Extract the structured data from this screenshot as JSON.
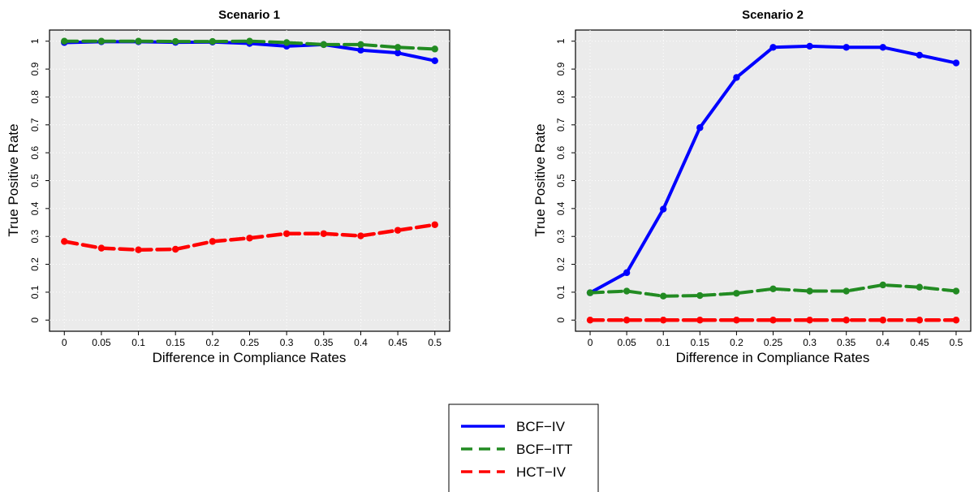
{
  "chart_data": [
    {
      "type": "line",
      "title": "Scenario 1",
      "xlabel": "Difference in Compliance Rates",
      "ylabel": "True Positive Rate",
      "x": [
        0,
        0.05,
        0.1,
        0.15,
        0.2,
        0.25,
        0.3,
        0.35,
        0.4,
        0.45,
        0.5
      ],
      "x_tick_labels": [
        "0",
        "0.05",
        "0.1",
        "0.15",
        "0.2",
        "0.25",
        "0.3",
        "0.35",
        "0.4",
        "0.45",
        "0.5"
      ],
      "y_ticks": [
        0,
        0.1,
        0.2,
        0.3,
        0.4,
        0.5,
        0.6,
        0.7,
        0.8,
        0.9,
        1
      ],
      "y_tick_labels": [
        "0",
        "0.1",
        "0.2",
        "0.3",
        "0.4",
        "0.5",
        "0.6",
        "0.7",
        "0.8",
        "0.9",
        "1"
      ],
      "xlim": [
        -0.02,
        0.52
      ],
      "ylim": [
        -0.04,
        1.04
      ],
      "grid": true,
      "series": [
        {
          "name": "BCF−IV",
          "values": [
            0.995,
            0.998,
            0.998,
            0.996,
            0.997,
            0.992,
            0.982,
            0.988,
            0.968,
            0.958,
            0.93
          ]
        },
        {
          "name": "BCF−ITT",
          "values": [
            1.0,
            1.0,
            1.0,
            0.999,
            0.999,
            1.0,
            0.995,
            0.988,
            0.988,
            0.978,
            0.972
          ]
        },
        {
          "name": "HCT−IV",
          "values": [
            0.282,
            0.258,
            0.252,
            0.254,
            0.282,
            0.294,
            0.31,
            0.31,
            0.302,
            0.322,
            0.342
          ]
        }
      ]
    },
    {
      "type": "line",
      "title": "Scenario 2",
      "xlabel": "Difference in Compliance Rates",
      "ylabel": "True Positive Rate",
      "x": [
        0,
        0.05,
        0.1,
        0.15,
        0.2,
        0.25,
        0.3,
        0.35,
        0.4,
        0.45,
        0.5
      ],
      "x_tick_labels": [
        "0",
        "0.05",
        "0.1",
        "0.15",
        "0.2",
        "0.25",
        "0.3",
        "0.35",
        "0.4",
        "0.45",
        "0.5"
      ],
      "y_ticks": [
        0,
        0.1,
        0.2,
        0.3,
        0.4,
        0.5,
        0.6,
        0.7,
        0.8,
        0.9,
        1
      ],
      "y_tick_labels": [
        "0",
        "0.1",
        "0.2",
        "0.3",
        "0.4",
        "0.5",
        "0.6",
        "0.7",
        "0.8",
        "0.9",
        "1"
      ],
      "xlim": [
        -0.02,
        0.52
      ],
      "ylim": [
        -0.04,
        1.04
      ],
      "grid": true,
      "series": [
        {
          "name": "BCF−IV",
          "values": [
            0.098,
            0.17,
            0.398,
            0.69,
            0.87,
            0.978,
            0.982,
            0.978,
            0.978,
            0.95,
            0.922
          ]
        },
        {
          "name": "BCF−ITT",
          "values": [
            0.098,
            0.104,
            0.086,
            0.088,
            0.096,
            0.112,
            0.104,
            0.104,
            0.126,
            0.118,
            0.104
          ]
        },
        {
          "name": "HCT−IV",
          "values": [
            0.0,
            0.0,
            0.0,
            0.0,
            0.0,
            0.0,
            0.0,
            0.0,
            0.0,
            0.0,
            0.0
          ]
        }
      ]
    }
  ],
  "legend": {
    "position": "bottom-center",
    "items": [
      {
        "label": "BCF−IV",
        "color": "#0000ff",
        "dash": "solid"
      },
      {
        "label": "BCF−ITT",
        "color": "#228b22",
        "dash": "dashed"
      },
      {
        "label": "HCT−IV",
        "color": "#ff0000",
        "dash": "dashed"
      }
    ]
  },
  "colors": {
    "panel_background": "#ebebeb",
    "grid": "#ffffff",
    "series": [
      "#0000ff",
      "#228b22",
      "#ff0000"
    ]
  }
}
